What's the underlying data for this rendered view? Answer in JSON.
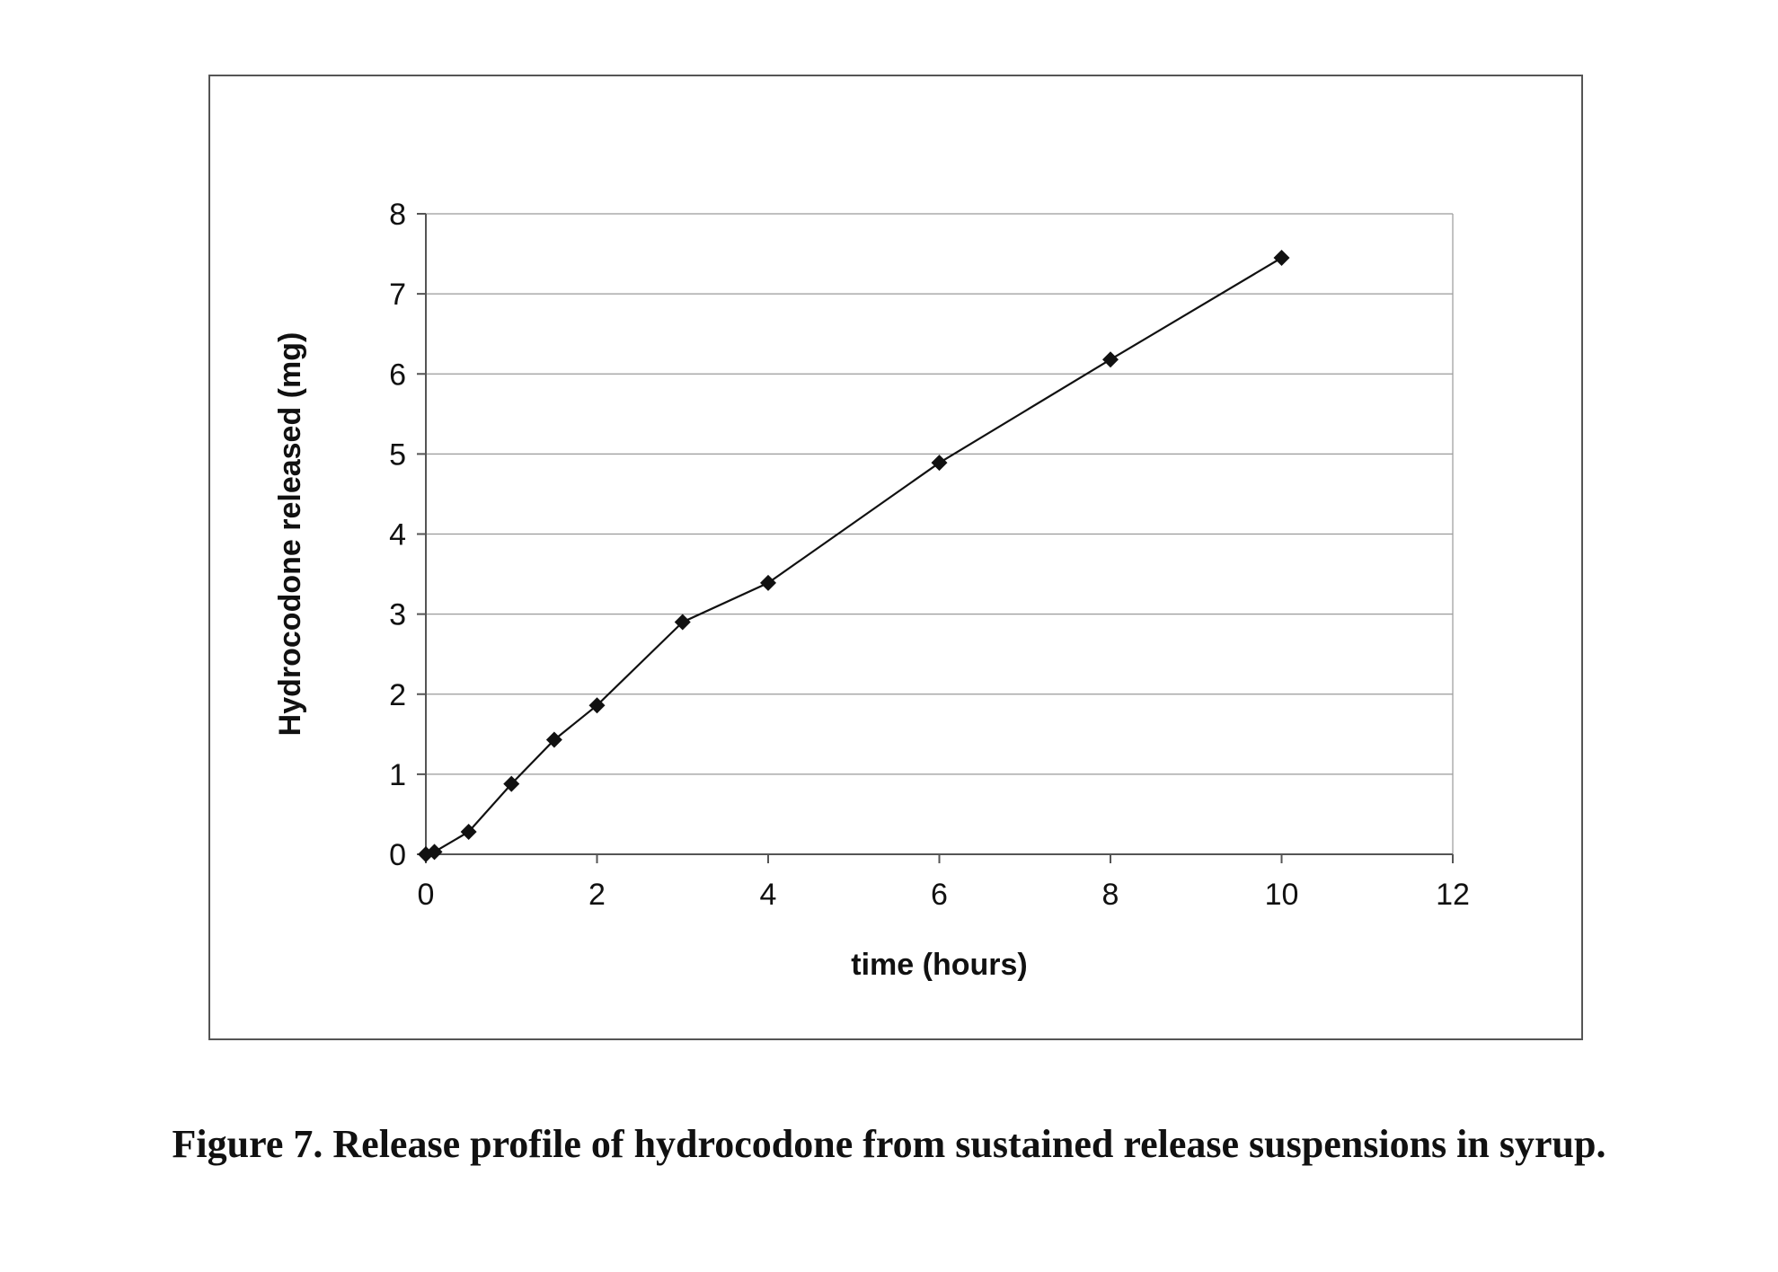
{
  "figure": {
    "caption": "Figure 7.  Release profile of hydrocodone from sustained release suspensions in syrup."
  },
  "chart_data": {
    "type": "line",
    "title": "",
    "xlabel": "time (hours)",
    "ylabel": "Hydrocodone released (mg)",
    "xlim": [
      0,
      12
    ],
    "ylim": [
      0,
      8
    ],
    "x_ticks": [
      "0",
      "2",
      "4",
      "6",
      "8",
      "10",
      "12"
    ],
    "y_ticks": [
      "0",
      "1",
      "2",
      "3",
      "4",
      "5",
      "6",
      "7",
      "8"
    ],
    "grid": "horizontal",
    "legend": "none",
    "marker": "diamond",
    "colors": {
      "line": "#111111",
      "marker": "#111111",
      "grid": "#9a9a9a",
      "axis": "#555555"
    },
    "series": [
      {
        "x": [
          0,
          0.1,
          0.5,
          1,
          1.5,
          2,
          3,
          4,
          6,
          8,
          10
        ],
        "y": [
          0,
          0.03,
          0.28,
          0.88,
          1.43,
          1.86,
          2.9,
          3.39,
          4.89,
          6.18,
          7.45
        ]
      }
    ]
  }
}
